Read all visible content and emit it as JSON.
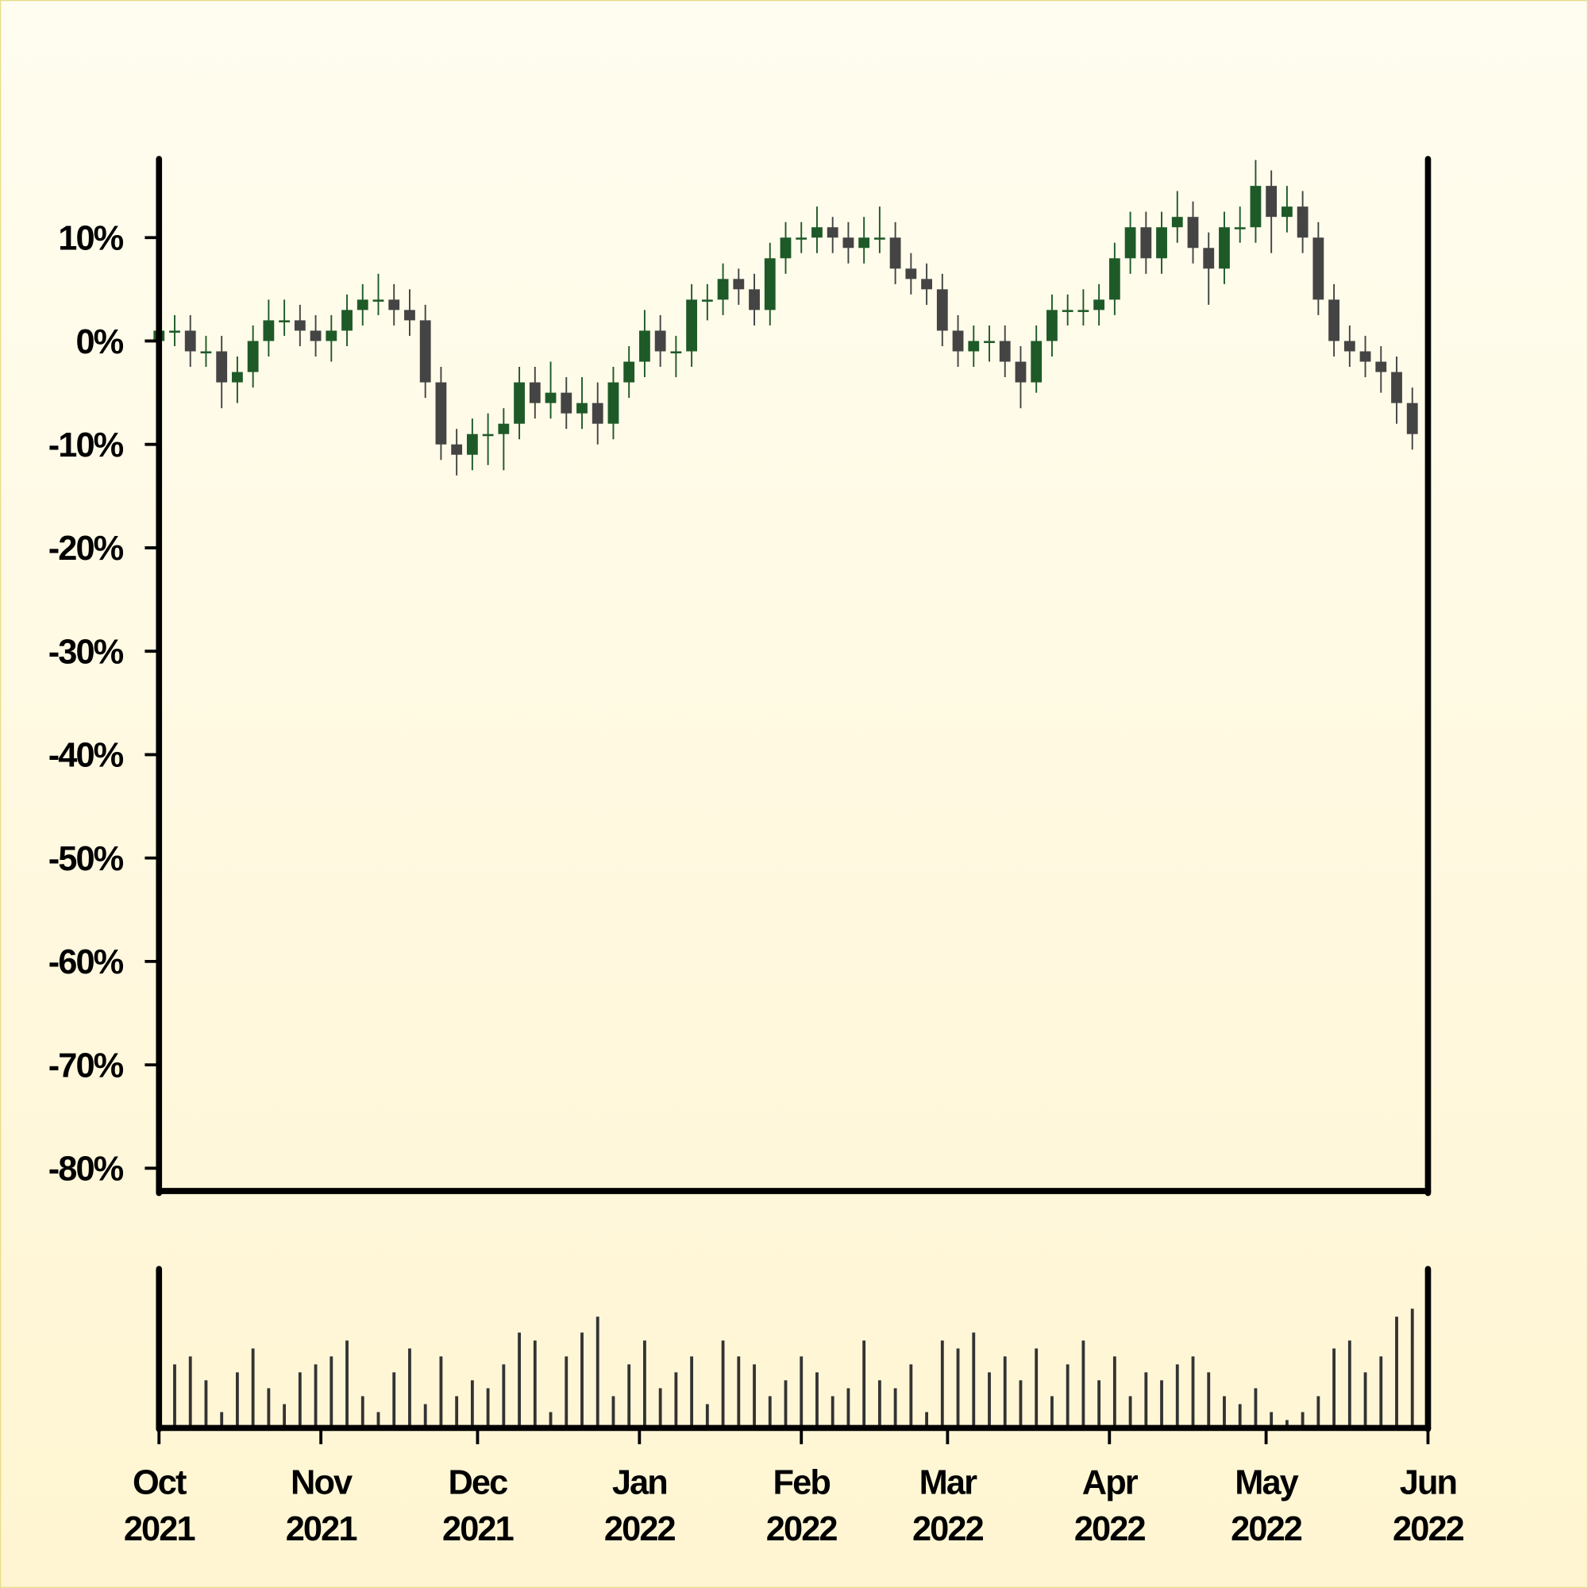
{
  "chart_data": {
    "type": "candlestick",
    "x": [
      0,
      3,
      6,
      9,
      12,
      15,
      18,
      21,
      24,
      27,
      30,
      33,
      36,
      39,
      42,
      45,
      48,
      51,
      54,
      57,
      60,
      63,
      66,
      69,
      72,
      75,
      78,
      81,
      84,
      87,
      90,
      93,
      96,
      99,
      102,
      105,
      108,
      111,
      114,
      117,
      120,
      123,
      126,
      129,
      132,
      135,
      138,
      141,
      144,
      147,
      150,
      153,
      156,
      159,
      162,
      165,
      168,
      171,
      174,
      177,
      180,
      183,
      186,
      189,
      192,
      195,
      198,
      201,
      204,
      207,
      210,
      213,
      216,
      219,
      222,
      225,
      228,
      231,
      234,
      237,
      240
    ],
    "open": [
      0,
      1,
      1,
      -1,
      -1,
      -4,
      -3,
      0,
      2,
      2,
      1,
      0,
      1,
      3,
      4,
      4,
      3,
      2,
      -4,
      -10,
      -11,
      -9,
      -9,
      -8,
      -4,
      -6,
      -5,
      -7,
      -6,
      -8,
      -4,
      -2,
      1,
      -1,
      -1,
      4,
      4,
      6,
      5,
      3,
      8,
      10,
      10,
      11,
      10,
      9,
      10,
      10,
      7,
      6,
      5,
      1,
      -1,
      0,
      0,
      -2,
      -4,
      0,
      3,
      3,
      3,
      4,
      8,
      11,
      8,
      11,
      12,
      9,
      7,
      11,
      11,
      15,
      12,
      13,
      10,
      4,
      0,
      -1,
      -2,
      -3,
      -6
    ],
    "high": [
      2.5,
      2.5,
      2.5,
      0.5,
      0.5,
      -1.5,
      1.5,
      4,
      4,
      3.5,
      2.5,
      2.5,
      4.5,
      5.5,
      6.5,
      5.5,
      5,
      3.5,
      -2.5,
      -8.5,
      -7.5,
      -7,
      -6.5,
      -2.5,
      -2.5,
      -2,
      -3.5,
      -3.5,
      -4,
      -2.5,
      -0.5,
      3,
      2.5,
      0.5,
      5.5,
      5.5,
      7.5,
      7,
      6.5,
      9.5,
      11.5,
      11.5,
      13,
      12,
      11.5,
      12,
      13,
      11.5,
      8.5,
      7.5,
      6.5,
      2.5,
      1.5,
      1.5,
      1.5,
      -0.5,
      1.5,
      4.5,
      4.5,
      5,
      5.5,
      9.5,
      12.5,
      12.5,
      12.5,
      14.5,
      13.5,
      10.5,
      12.5,
      13,
      17.5,
      16.5,
      15,
      14.5,
      11.5,
      5.5,
      1.5,
      0.5,
      -0.5,
      -1.5,
      -4.5
    ],
    "low": [
      -1.5,
      -0.5,
      -2.5,
      -2.5,
      -6.5,
      -6,
      -4.5,
      -1.5,
      0.5,
      -0.5,
      -1.5,
      -2,
      -0.5,
      1.5,
      2.5,
      1.5,
      0.5,
      -5.5,
      -11.5,
      -13,
      -12.5,
      -12,
      -12.5,
      -9.5,
      -7.5,
      -7.5,
      -8.5,
      -8.5,
      -10,
      -9.5,
      -5.5,
      -3.5,
      -2.5,
      -3.5,
      -2.5,
      2,
      2.5,
      3.5,
      1.5,
      1.5,
      6.5,
      8.5,
      8.5,
      8.5,
      7.5,
      7.5,
      8.5,
      5.5,
      4.5,
      3.5,
      -0.5,
      -2.5,
      -2.5,
      -2,
      -3.5,
      -6.5,
      -5,
      -1.5,
      1.5,
      1.5,
      1.5,
      2.5,
      6.5,
      6.5,
      6.5,
      9.5,
      7.5,
      3.5,
      5.5,
      9.5,
      9.5,
      8.5,
      10.5,
      8.5,
      2.5,
      -1.5,
      -2.5,
      -3.5,
      -5,
      -8,
      -10.5
    ],
    "close": [
      1,
      1,
      -1,
      -1,
      -4,
      -3,
      0,
      2,
      2,
      1,
      0,
      1,
      3,
      4,
      4,
      3,
      2,
      -4,
      -10,
      -11,
      -9,
      -9,
      -8,
      -4,
      -6,
      -5,
      -7,
      -6,
      -8,
      -4,
      -2,
      1,
      -1,
      -1,
      4,
      4,
      6,
      5,
      3,
      8,
      10,
      10,
      11,
      10,
      9,
      10,
      10,
      7,
      6,
      5,
      1,
      -1,
      0,
      0,
      -2,
      -4,
      0,
      3,
      3,
      3,
      4,
      8,
      11,
      8,
      11,
      12,
      9,
      7,
      11,
      11,
      15,
      12,
      13,
      10,
      4,
      0,
      -1,
      -2,
      -3,
      -6,
      -9
    ],
    "volume": [
      5,
      40,
      45,
      30,
      10,
      35,
      50,
      25,
      15,
      35,
      40,
      45,
      55,
      20,
      10,
      35,
      50,
      15,
      45,
      20,
      30,
      25,
      40,
      60,
      55,
      10,
      45,
      60,
      70,
      20,
      40,
      55,
      25,
      35,
      45,
      15,
      55,
      45,
      40,
      20,
      30,
      45,
      35,
      20,
      25,
      55,
      30,
      25,
      40,
      10,
      55,
      50,
      60,
      35,
      45,
      30,
      50,
      20,
      40,
      55,
      30,
      45,
      20,
      35,
      30,
      40,
      45,
      35,
      20,
      15,
      25,
      10,
      5,
      10,
      20,
      50,
      55,
      35,
      45,
      70,
      75
    ],
    "up_color": "#1e5a28",
    "down_color": "#444444",
    "volume_color": "#333333",
    "xlim": [
      0,
      243
    ],
    "xticks": [
      {
        "value": 0,
        "label": "Oct 2021"
      },
      {
        "value": 31,
        "label": "Nov 2021"
      },
      {
        "value": 61,
        "label": "Dec 2021"
      },
      {
        "value": 92,
        "label": "Jan 2022"
      },
      {
        "value": 123,
        "label": "Feb 2022"
      },
      {
        "value": 151,
        "label": "Mar 2022"
      },
      {
        "value": 182,
        "label": "Apr 2022"
      },
      {
        "value": 212,
        "label": "May 2022"
      },
      {
        "value": 243,
        "label": "Jun 2022"
      }
    ],
    "ylim": [
      -82.2,
      17.6
    ],
    "yticks": [
      {
        "value": 10,
        "label": "10%"
      },
      {
        "value": 0,
        "label": "0%"
      },
      {
        "value": -10,
        "label": "-10%"
      },
      {
        "value": -20,
        "label": "-20%"
      },
      {
        "value": -30,
        "label": "-30%"
      },
      {
        "value": -40,
        "label": "-40%"
      },
      {
        "value": -50,
        "label": "-50%"
      },
      {
        "value": -60,
        "label": "-60%"
      },
      {
        "value": -70,
        "label": "-70%"
      },
      {
        "value": -80,
        "label": "-80%"
      }
    ],
    "volume_ylim": [
      0,
      100
    ]
  }
}
